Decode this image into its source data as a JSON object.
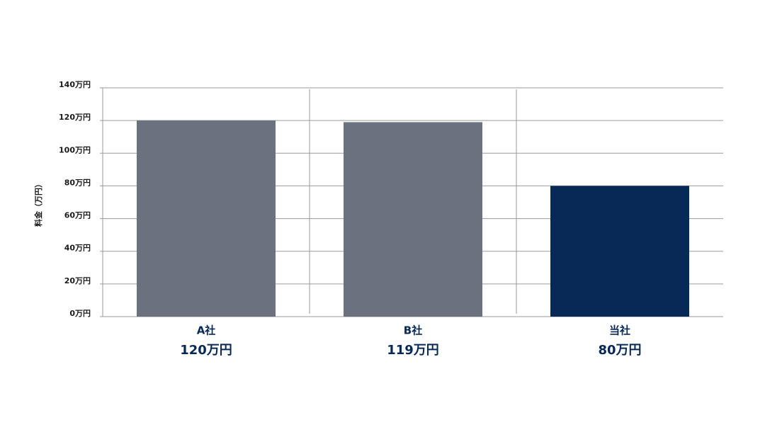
{
  "chart_data": {
    "type": "bar",
    "y_label": "料金（万円）",
    "categories": [
      "A社",
      "B社",
      "当社"
    ],
    "values": [
      120,
      119,
      80
    ],
    "value_labels": [
      "120万円",
      "119万円",
      "80万円"
    ],
    "colors": [
      "#6b717e",
      "#6b717e",
      "#082855"
    ],
    "ylim": [
      0,
      140
    ],
    "yticks": [
      {
        "value": 0,
        "label": "0万円"
      },
      {
        "value": 20,
        "label": "20万円"
      },
      {
        "value": 40,
        "label": "40万円"
      },
      {
        "value": 60,
        "label": "60万円"
      },
      {
        "value": 80,
        "label": "80万円"
      },
      {
        "value": 100,
        "label": "100万円"
      },
      {
        "value": 120,
        "label": "120万円"
      },
      {
        "value": 140,
        "label": "140万円"
      }
    ],
    "grid": true
  }
}
